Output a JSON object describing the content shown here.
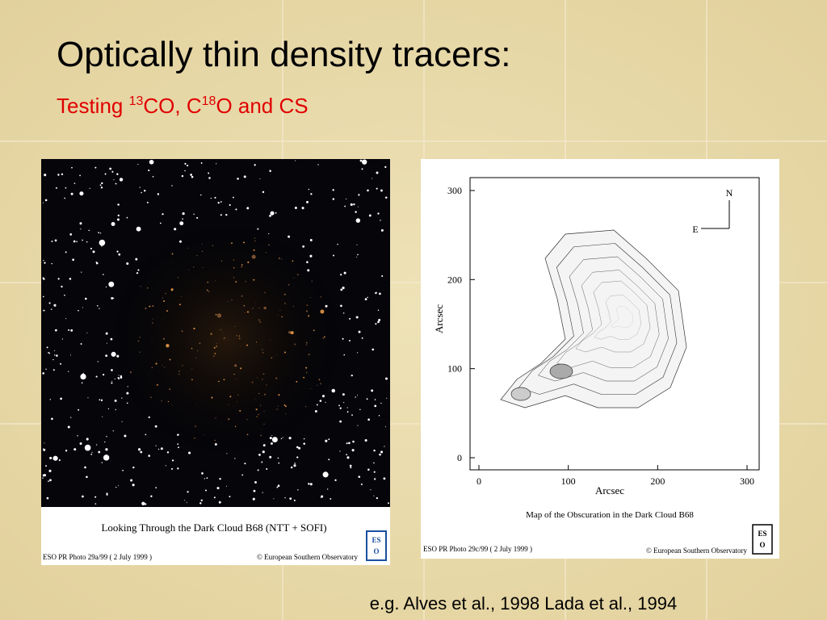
{
  "slide": {
    "title": "Optically thin density tracers:",
    "subtitle": {
      "parts": [
        "Testing ",
        "13",
        "CO, C",
        "18",
        "O and CS"
      ]
    },
    "left_image": {
      "caption": "Looking Through the Dark Cloud B68  (NTT + SOFI)",
      "photo_id": "ESO PR Photo 29a/99 ( 2 July 1999 )",
      "credit": "© European Southern Observatory",
      "logo": [
        "ES",
        "O"
      ]
    },
    "right_image": {
      "xticks": [
        0,
        100,
        200,
        300
      ],
      "yticks": [
        0,
        100,
        200,
        300
      ],
      "xlabel": "Arcsec",
      "ylabel": "Arcsec",
      "compass": [
        "N",
        "E"
      ],
      "caption": "Map of the Obscuration in the Dark Cloud B68",
      "photo_id": "ESO PR Photo 29c/99 ( 2 July 1999 )",
      "credit": "© European Southern Observatory",
      "logo": [
        "ES",
        "O"
      ]
    },
    "footer": "e.g. Alves et al., 1998 Lada et al., 1994"
  }
}
